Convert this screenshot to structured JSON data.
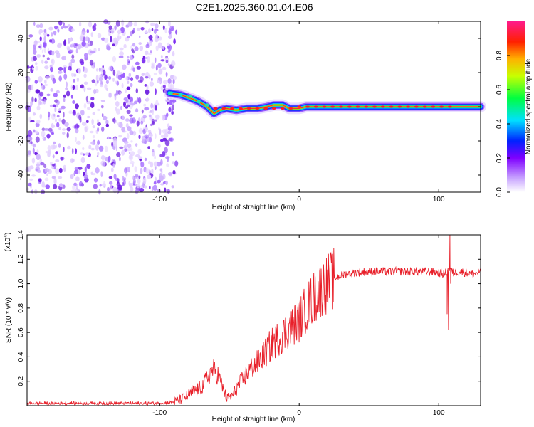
{
  "title": "C2E1.2025.360.01.04.E06",
  "chart_data": [
    {
      "type": "heatmap",
      "name": "spectrogram",
      "xlabel": "Height of straight line (km)",
      "ylabel": "Frequency (Hz)",
      "xlim": [
        -195,
        130
      ],
      "ylim": [
        -50,
        50
      ],
      "xticks": [
        -100,
        0,
        100
      ],
      "yticks": [
        -40,
        -20,
        0,
        20,
        40
      ],
      "ridge": [
        [
          -93,
          8
        ],
        [
          -85,
          7
        ],
        [
          -78,
          5
        ],
        [
          -72,
          3
        ],
        [
          -66,
          0
        ],
        [
          -61,
          -4
        ],
        [
          -57,
          -2
        ],
        [
          -52,
          -1
        ],
        [
          -45,
          -2
        ],
        [
          -38,
          -1
        ],
        [
          -30,
          -1
        ],
        [
          -23,
          0
        ],
        [
          -18,
          1
        ],
        [
          -12,
          1
        ],
        [
          -7,
          -1
        ],
        [
          0,
          -1
        ],
        [
          5,
          0
        ],
        [
          12,
          0
        ],
        [
          25,
          0
        ],
        [
          60,
          0
        ],
        [
          100,
          0
        ],
        [
          130,
          0
        ]
      ],
      "noise_region": [
        -195,
        -88
      ],
      "colorbar": {
        "label": "Normalized spectral amplitude",
        "ticks": [
          0.0,
          0.2,
          0.4,
          0.6,
          0.8
        ],
        "range": [
          0,
          1
        ]
      }
    },
    {
      "type": "line",
      "name": "snr",
      "xlabel": "Height of straight line (km)",
      "ylabel": "SNR (10 * v/v)",
      "scale_label": "(x10",
      "scale_exp": "4",
      "scale_close": ")",
      "xlim": [
        -195,
        130
      ],
      "ylim": [
        0,
        1.4
      ],
      "xticks": [
        -100,
        0,
        100
      ],
      "yticks": [
        0.2,
        0.4,
        0.6,
        0.8,
        1.0,
        1.2,
        1.4
      ],
      "color": "#e8202a",
      "series": [
        {
          "name": "SNR",
          "x": [
            -195,
            -150,
            -100,
            -90,
            -85,
            -80,
            -75,
            -70,
            -66,
            -62,
            -58,
            -55,
            -52,
            -48,
            -45,
            -40,
            -35,
            -30,
            -25,
            -20,
            -15,
            -10,
            -5,
            0,
            5,
            10,
            15,
            20,
            25,
            30,
            40,
            50,
            60,
            70,
            80,
            90,
            100,
            104,
            106,
            108,
            110,
            115,
            120,
            125,
            130
          ],
          "y": [
            0.02,
            0.02,
            0.02,
            0.03,
            0.05,
            0.08,
            0.12,
            0.15,
            0.22,
            0.3,
            0.25,
            0.15,
            0.06,
            0.08,
            0.14,
            0.22,
            0.3,
            0.35,
            0.42,
            0.5,
            0.55,
            0.6,
            0.65,
            0.7,
            0.8,
            0.88,
            0.95,
            1.0,
            1.04,
            1.07,
            1.09,
            1.1,
            1.1,
            1.1,
            1.1,
            1.1,
            1.09,
            1.08,
            1.1,
            1.12,
            1.09,
            1.1,
            1.09,
            1.08,
            1.1
          ]
        },
        {
          "name": "spike",
          "x": [
            106,
            107,
            108,
            108.5,
            109
          ],
          "y": [
            0.75,
            0.62,
            1.4,
            1.0,
            1.1
          ]
        }
      ]
    }
  ]
}
